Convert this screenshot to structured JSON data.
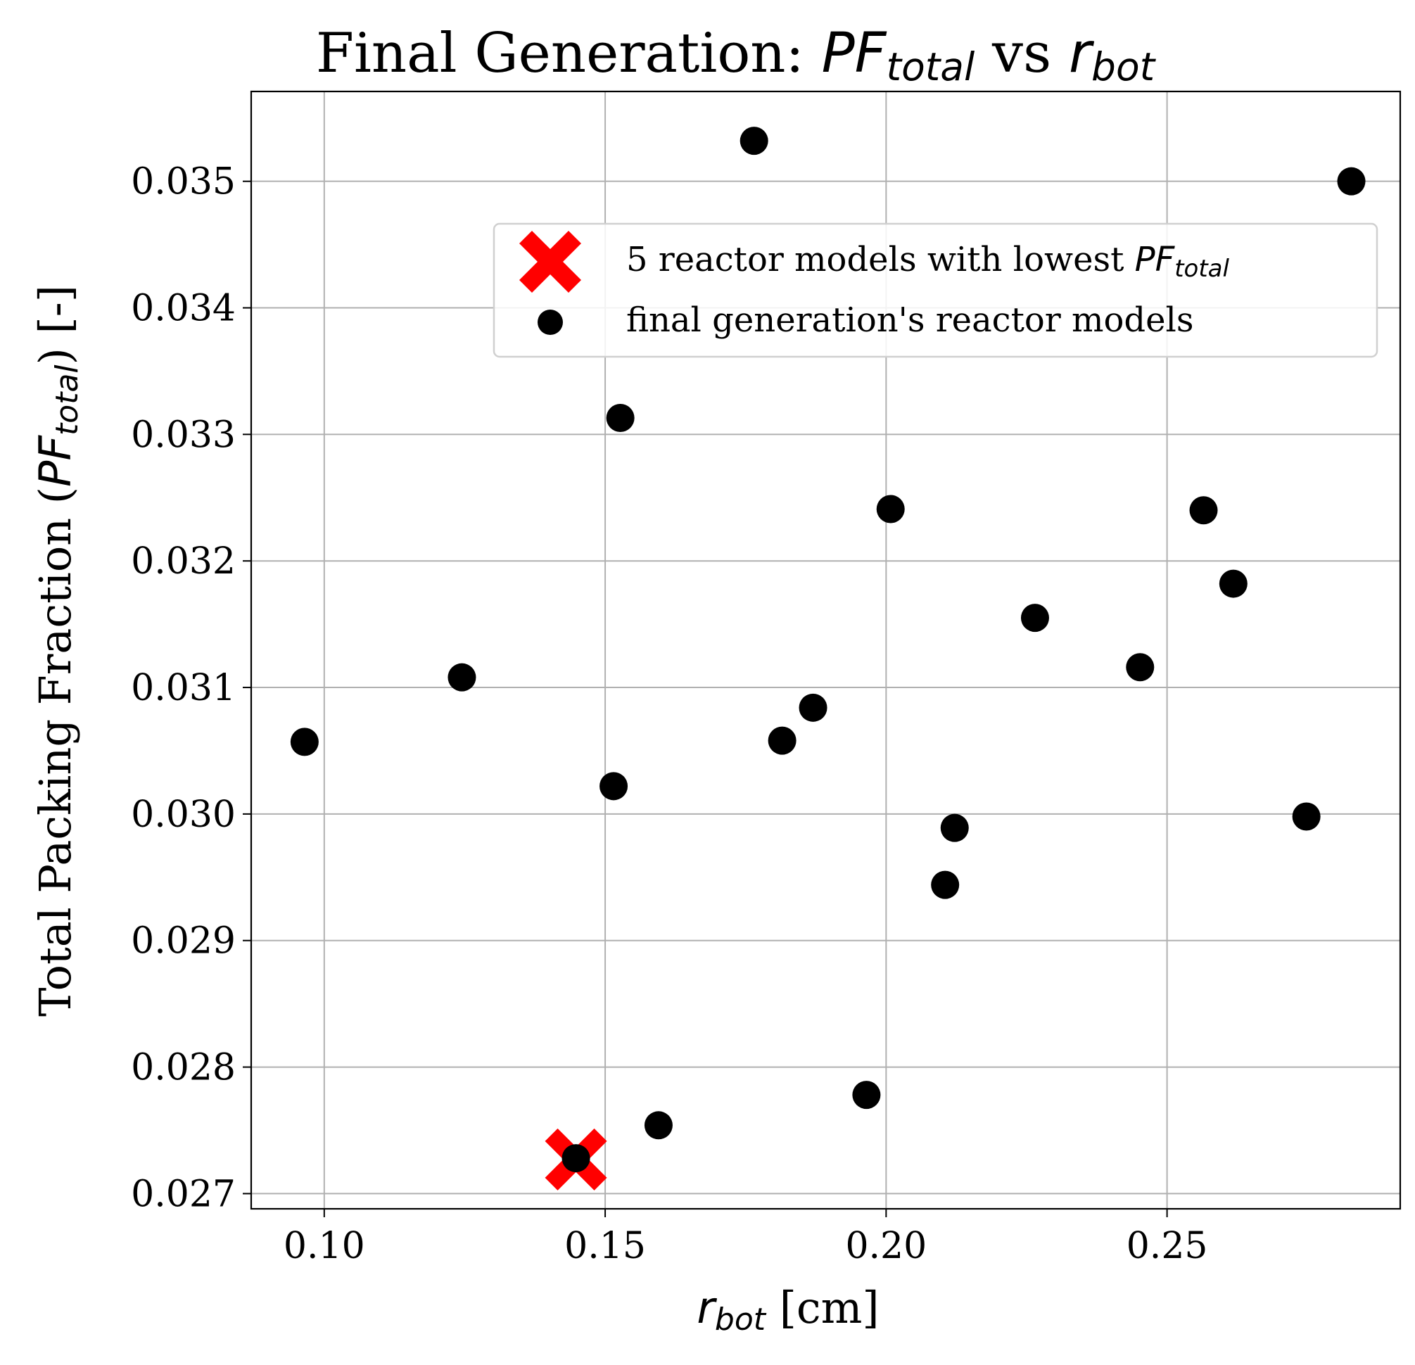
{
  "chart_data": {
    "type": "scatter",
    "title": {
      "prefix": "Final Generation: ",
      "var1_base": "PF",
      "var1_sub": "total",
      "mid": " vs ",
      "var2_base": "r",
      "var2_sub": "bot"
    },
    "xlabel": {
      "base": "r",
      "sub": "bot",
      "unit": " [cm]"
    },
    "ylabel": {
      "prefix": "Total Packing Fraction (",
      "base": "PF",
      "sub": "total",
      "suffix": ") [-]"
    },
    "xlim": [
      0.087,
      0.2915
    ],
    "ylim": [
      0.02688,
      0.03571
    ],
    "xticks": [
      {
        "value": 0.1,
        "label": "0.10"
      },
      {
        "value": 0.15,
        "label": "0.15"
      },
      {
        "value": 0.2,
        "label": "0.20"
      },
      {
        "value": 0.25,
        "label": "0.25"
      }
    ],
    "yticks": [
      {
        "value": 0.027,
        "label": "0.027"
      },
      {
        "value": 0.028,
        "label": "0.028"
      },
      {
        "value": 0.029,
        "label": "0.029"
      },
      {
        "value": 0.03,
        "label": "0.030"
      },
      {
        "value": 0.031,
        "label": "0.031"
      },
      {
        "value": 0.032,
        "label": "0.032"
      },
      {
        "value": 0.033,
        "label": "0.033"
      },
      {
        "value": 0.034,
        "label": "0.034"
      },
      {
        "value": 0.035,
        "label": "0.035"
      }
    ],
    "grid": true,
    "legend_position": "upper-right",
    "series": [
      {
        "name": "5 reactor models with lowest ",
        "name_var_base": "PF",
        "name_var_sub": "total",
        "marker": "X",
        "color": "#ff0000",
        "points": [
          [
            0.1448,
            0.02727
          ]
        ]
      },
      {
        "name": "final generation's reactor models",
        "marker": "circle",
        "color": "#000000",
        "points": [
          [
            0.0965,
            0.03057
          ],
          [
            0.1245,
            0.03108
          ],
          [
            0.1448,
            0.02728
          ],
          [
            0.1515,
            0.03022
          ],
          [
            0.1527,
            0.03313
          ],
          [
            0.1595,
            0.02754
          ],
          [
            0.1765,
            0.03532
          ],
          [
            0.1815,
            0.03058
          ],
          [
            0.187,
            0.03084
          ],
          [
            0.1965,
            0.02778
          ],
          [
            0.2008,
            0.03241
          ],
          [
            0.2105,
            0.02944
          ],
          [
            0.2122,
            0.02989
          ],
          [
            0.2265,
            0.03155
          ],
          [
            0.2452,
            0.03116
          ],
          [
            0.2565,
            0.0324
          ],
          [
            0.2618,
            0.03182
          ],
          [
            0.2748,
            0.02998
          ],
          [
            0.2828,
            0.035
          ]
        ]
      }
    ]
  }
}
